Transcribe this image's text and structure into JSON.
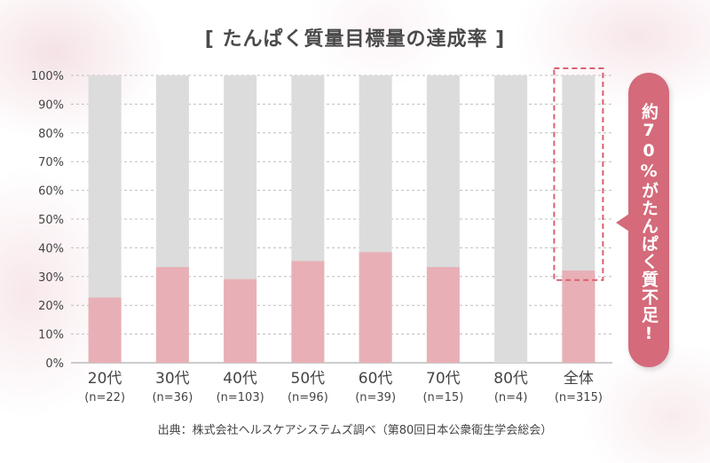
{
  "title": "[ たんぱく質量目標量の達成率 ]",
  "source": "出典：株式会社ヘルスケアシステムズ調べ（第80回日本公衆衛生学会総会）",
  "callout": "約70%がたんぱく質不足!",
  "colors": {
    "achieved": "#e8b0b6",
    "remainder": "#dcdcdc",
    "callout": "#d46a7a",
    "highlight_border": "#d9606f",
    "text": "#444444"
  },
  "chart_data": {
    "type": "bar",
    "stacked": true,
    "categories": [
      "20代",
      "30代",
      "40代",
      "50代",
      "60代",
      "70代",
      "80代",
      "全体"
    ],
    "sample_sizes": [
      "(n=22)",
      "(n=36)",
      "(n=103)",
      "(n=96)",
      "(n=39)",
      "(n=15)",
      "(n=4)",
      "(n=315)"
    ],
    "series": [
      {
        "values": [
          22.7,
          33.3,
          29.1,
          35.4,
          38.5,
          33.3,
          0,
          32.1
        ]
      },
      {
        "values": [
          77.3,
          66.7,
          70.9,
          64.6,
          61.5,
          66.7,
          100,
          67.9
        ]
      }
    ],
    "ylim": [
      0,
      100
    ],
    "yticks": [
      "0%",
      "10%",
      "20%",
      "30%",
      "40%",
      "50%",
      "60%",
      "70%",
      "80%",
      "90%",
      "100%"
    ],
    "grid": true,
    "highlighted_category": "全体"
  }
}
